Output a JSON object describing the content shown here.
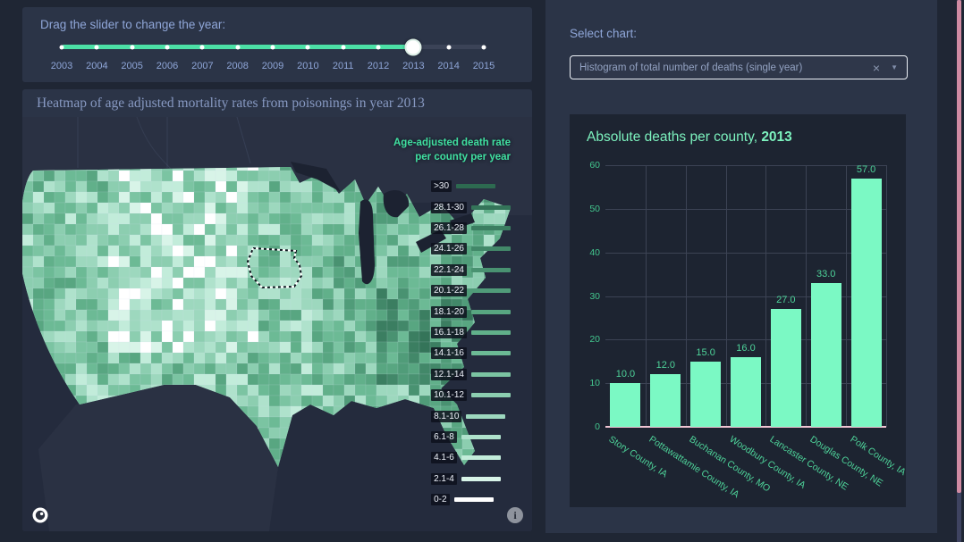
{
  "theme": {
    "page_bg": "#1f2634",
    "panel_bg": "#2b3447",
    "chart_card_bg": "#1d2431",
    "accent_teal": "#4ce0a6",
    "bar_color": "#7bf9c4",
    "tick_green": "#43c78e",
    "label_blue": "#8fa6d8",
    "scrollbar_pink": "#d08ba3",
    "zero_line_pink": "#f2c4d3"
  },
  "slider": {
    "label": "Drag the slider to change the year:",
    "years": [
      "2003",
      "2004",
      "2005",
      "2006",
      "2007",
      "2008",
      "2009",
      "2010",
      "2011",
      "2012",
      "2013",
      "2014",
      "2015"
    ],
    "selected_year": "2013"
  },
  "chart_selector": {
    "label": "Select chart:",
    "value": "Histogram of total number of deaths (single year)",
    "clear_icon": "×",
    "dropdown_icon": "▼"
  },
  "map": {
    "title": "Heatmap of age adjusted mortality rates from poisonings in year 2013",
    "legend": {
      "title_line1": "Age-adjusted death rate",
      "title_line2": "per county per year",
      "entries": [
        {
          "label": ">30",
          "color": "#2d6a50"
        },
        {
          "label": "28.1-30",
          "color": "#347459"
        },
        {
          "label": "26.1-28",
          "color": "#3b7e61"
        },
        {
          "label": "24.1-26",
          "color": "#428869"
        },
        {
          "label": "22.1-24",
          "color": "#499271"
        },
        {
          "label": "20.1-22",
          "color": "#509c79"
        },
        {
          "label": "18.1-20",
          "color": "#58a681"
        },
        {
          "label": "16.1-18",
          "color": "#61b08a"
        },
        {
          "label": "14.1-16",
          "color": "#6cba95"
        },
        {
          "label": "12.1-14",
          "color": "#7bc4a2"
        },
        {
          "label": "10.1-12",
          "color": "#8cceb0"
        },
        {
          "label": "8.1-10",
          "color": "#9dd8be"
        },
        {
          "label": "6.1-8",
          "color": "#afe2cc"
        },
        {
          "label": "4.1-6",
          "color": "#c2ecda"
        },
        {
          "label": "2.1-4",
          "color": "#d8f4e8"
        },
        {
          "label": "0-2",
          "color": "#ffffff"
        }
      ]
    }
  },
  "chart_data": {
    "type": "bar",
    "title_prefix": "Absolute deaths per county, ",
    "title_year": "2013",
    "categories": [
      "Story County, IA",
      "Pottawattamie County, IA",
      "Buchanan County, MO",
      "Woodbury County, IA",
      "Lancaster County, NE",
      "Douglas County, NE",
      "Polk County, IA"
    ],
    "values": [
      10,
      12,
      15,
      16,
      27,
      33,
      57
    ],
    "value_label_decimals": 1,
    "xlabel": "",
    "ylabel": "",
    "ylim": [
      0,
      60
    ],
    "yticks": [
      0,
      10,
      20,
      30,
      40,
      50,
      60
    ],
    "grid": true,
    "legend_position": "none"
  }
}
